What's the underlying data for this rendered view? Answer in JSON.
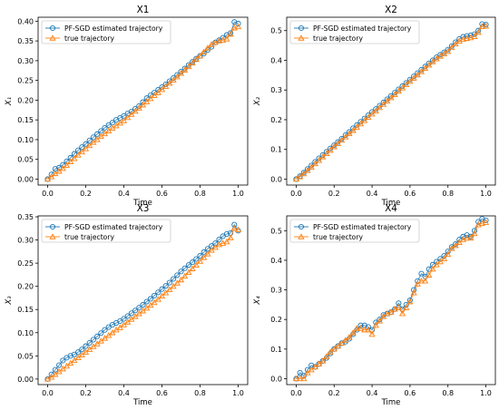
{
  "chart_data": [
    {
      "type": "line",
      "title": "X1",
      "xlabel": "Time",
      "ylabel": "X₁",
      "xlim": [
        -0.05,
        1.05
      ],
      "ylim": [
        -0.015,
        0.41
      ],
      "xticks": [
        "0.0",
        "0.2",
        "0.4",
        "0.6",
        "0.8",
        "1.0"
      ],
      "yticks": [
        "0.00",
        "0.05",
        "0.10",
        "0.15",
        "0.20",
        "0.25",
        "0.30",
        "0.35",
        "0.40"
      ],
      "legend": {
        "position": "top-left",
        "entries": [
          "PF-SGD estimated trajectory",
          "true trajectory"
        ]
      },
      "x": [
        0.0,
        0.02,
        0.04,
        0.06,
        0.08,
        0.1,
        0.12,
        0.14,
        0.16,
        0.18,
        0.2,
        0.22,
        0.24,
        0.26,
        0.28,
        0.3,
        0.32,
        0.34,
        0.36,
        0.38,
        0.4,
        0.42,
        0.44,
        0.46,
        0.48,
        0.5,
        0.52,
        0.54,
        0.56,
        0.58,
        0.6,
        0.62,
        0.64,
        0.66,
        0.68,
        0.7,
        0.72,
        0.74,
        0.76,
        0.78,
        0.8,
        0.82,
        0.84,
        0.86,
        0.88,
        0.9,
        0.92,
        0.94,
        0.96,
        0.98,
        1.0
      ],
      "series": [
        {
          "name": "PF-SGD estimated trajectory",
          "marker": "circle",
          "color": "#1f77b4",
          "values": [
            0.0,
            0.012,
            0.026,
            0.029,
            0.036,
            0.045,
            0.054,
            0.064,
            0.073,
            0.081,
            0.089,
            0.098,
            0.106,
            0.114,
            0.122,
            0.13,
            0.137,
            0.143,
            0.15,
            0.155,
            0.16,
            0.166,
            0.171,
            0.178,
            0.185,
            0.195,
            0.205,
            0.212,
            0.219,
            0.226,
            0.233,
            0.24,
            0.248,
            0.256,
            0.264,
            0.272,
            0.28,
            0.289,
            0.297,
            0.305,
            0.312,
            0.318,
            0.327,
            0.335,
            0.346,
            0.352,
            0.358,
            0.365,
            0.37,
            0.398,
            0.394
          ]
        },
        {
          "name": "true trajectory",
          "marker": "triangle",
          "color": "#ff7f0e",
          "values": [
            0.0,
            0.006,
            0.014,
            0.02,
            0.027,
            0.035,
            0.044,
            0.052,
            0.061,
            0.069,
            0.077,
            0.085,
            0.093,
            0.1,
            0.108,
            0.115,
            0.122,
            0.129,
            0.135,
            0.142,
            0.148,
            0.156,
            0.164,
            0.172,
            0.18,
            0.188,
            0.196,
            0.204,
            0.212,
            0.219,
            0.227,
            0.235,
            0.243,
            0.251,
            0.259,
            0.268,
            0.276,
            0.285,
            0.294,
            0.303,
            0.312,
            0.322,
            0.332,
            0.341,
            0.346,
            0.35,
            0.352,
            0.355,
            0.367,
            0.383,
            0.386
          ]
        }
      ]
    },
    {
      "type": "line",
      "title": "X2",
      "xlabel": "Time",
      "ylabel": "X₂",
      "xlim": [
        -0.05,
        1.05
      ],
      "ylim": [
        -0.02,
        0.545
      ],
      "xticks": [
        "0.0",
        "0.2",
        "0.4",
        "0.6",
        "0.8",
        "1.0"
      ],
      "yticks": [
        "0.0",
        "0.1",
        "0.2",
        "0.3",
        "0.4",
        "0.5"
      ],
      "legend": {
        "position": "top-left",
        "entries": [
          "PF-SGD estimated trajectory",
          "true trajectory"
        ]
      },
      "x": [
        0.0,
        0.02,
        0.04,
        0.06,
        0.08,
        0.1,
        0.12,
        0.14,
        0.16,
        0.18,
        0.2,
        0.22,
        0.24,
        0.26,
        0.28,
        0.3,
        0.32,
        0.34,
        0.36,
        0.38,
        0.4,
        0.42,
        0.44,
        0.46,
        0.48,
        0.5,
        0.52,
        0.54,
        0.56,
        0.58,
        0.6,
        0.62,
        0.64,
        0.66,
        0.68,
        0.7,
        0.72,
        0.74,
        0.76,
        0.78,
        0.8,
        0.82,
        0.84,
        0.86,
        0.88,
        0.9,
        0.92,
        0.94,
        0.96,
        0.98,
        1.0
      ],
      "series": [
        {
          "name": "PF-SGD estimated trajectory",
          "marker": "circle",
          "color": "#1f77b4",
          "values": [
            0.0,
            0.01,
            0.022,
            0.034,
            0.046,
            0.058,
            0.07,
            0.081,
            0.092,
            0.103,
            0.114,
            0.125,
            0.136,
            0.148,
            0.159,
            0.171,
            0.182,
            0.193,
            0.204,
            0.215,
            0.226,
            0.236,
            0.247,
            0.258,
            0.269,
            0.28,
            0.291,
            0.302,
            0.313,
            0.324,
            0.335,
            0.346,
            0.357,
            0.368,
            0.379,
            0.39,
            0.4,
            0.41,
            0.419,
            0.427,
            0.436,
            0.448,
            0.461,
            0.472,
            0.479,
            0.482,
            0.484,
            0.488,
            0.5,
            0.522,
            0.52
          ]
        },
        {
          "name": "true trajectory",
          "marker": "triangle",
          "color": "#ff7f0e",
          "values": [
            0.0,
            0.008,
            0.018,
            0.029,
            0.04,
            0.052,
            0.063,
            0.075,
            0.086,
            0.097,
            0.109,
            0.12,
            0.131,
            0.142,
            0.153,
            0.164,
            0.175,
            0.186,
            0.197,
            0.208,
            0.219,
            0.23,
            0.241,
            0.252,
            0.263,
            0.274,
            0.285,
            0.296,
            0.307,
            0.318,
            0.329,
            0.34,
            0.351,
            0.362,
            0.373,
            0.384,
            0.395,
            0.405,
            0.414,
            0.422,
            0.43,
            0.443,
            0.455,
            0.465,
            0.471,
            0.474,
            0.476,
            0.48,
            0.494,
            0.514,
            0.515
          ]
        }
      ]
    },
    {
      "type": "line",
      "title": "X3",
      "xlabel": "Time",
      "ylabel": "X₃",
      "xlim": [
        -0.05,
        1.05
      ],
      "ylim": [
        -0.012,
        0.352
      ],
      "xticks": [
        "0.0",
        "0.2",
        "0.4",
        "0.6",
        "0.8",
        "1.0"
      ],
      "yticks": [
        "0.00",
        "0.05",
        "0.10",
        "0.15",
        "0.20",
        "0.25",
        "0.30",
        "0.35"
      ],
      "legend": {
        "position": "top-left",
        "entries": [
          "PF-SGD estimated trajectory",
          "true trajectory"
        ]
      },
      "x": [
        0.0,
        0.02,
        0.04,
        0.06,
        0.08,
        0.1,
        0.12,
        0.14,
        0.16,
        0.18,
        0.2,
        0.22,
        0.24,
        0.26,
        0.28,
        0.3,
        0.32,
        0.34,
        0.36,
        0.38,
        0.4,
        0.42,
        0.44,
        0.46,
        0.48,
        0.5,
        0.52,
        0.54,
        0.56,
        0.58,
        0.6,
        0.62,
        0.64,
        0.66,
        0.68,
        0.7,
        0.72,
        0.74,
        0.76,
        0.78,
        0.8,
        0.82,
        0.84,
        0.86,
        0.88,
        0.9,
        0.92,
        0.94,
        0.96,
        0.98,
        1.0
      ],
      "series": [
        {
          "name": "PF-SGD estimated trajectory",
          "marker": "circle",
          "color": "#1f77b4",
          "values": [
            0.0,
            0.01,
            0.02,
            0.03,
            0.04,
            0.046,
            0.05,
            0.053,
            0.058,
            0.064,
            0.071,
            0.078,
            0.085,
            0.092,
            0.099,
            0.106,
            0.112,
            0.117,
            0.121,
            0.125,
            0.13,
            0.136,
            0.142,
            0.148,
            0.154,
            0.16,
            0.167,
            0.173,
            0.18,
            0.187,
            0.194,
            0.201,
            0.208,
            0.216,
            0.224,
            0.232,
            0.239,
            0.246,
            0.252,
            0.259,
            0.266,
            0.274,
            0.281,
            0.287,
            0.293,
            0.301,
            0.308,
            0.313,
            0.315,
            0.333,
            0.32
          ]
        },
        {
          "name": "true trajectory",
          "marker": "triangle",
          "color": "#ff7f0e",
          "values": [
            0.0,
            0.004,
            0.01,
            0.016,
            0.022,
            0.028,
            0.034,
            0.04,
            0.046,
            0.052,
            0.058,
            0.064,
            0.07,
            0.076,
            0.082,
            0.088,
            0.094,
            0.1,
            0.106,
            0.111,
            0.117,
            0.123,
            0.129,
            0.135,
            0.141,
            0.147,
            0.153,
            0.159,
            0.165,
            0.172,
            0.179,
            0.186,
            0.193,
            0.2,
            0.207,
            0.214,
            0.222,
            0.23,
            0.238,
            0.246,
            0.254,
            0.262,
            0.27,
            0.278,
            0.284,
            0.29,
            0.293,
            0.296,
            0.305,
            0.325,
            0.322
          ]
        }
      ]
    },
    {
      "type": "line",
      "title": "X4",
      "xlabel": "Time",
      "ylabel": "X₄",
      "xlim": [
        -0.05,
        1.05
      ],
      "ylim": [
        -0.02,
        0.55
      ],
      "xticks": [
        "0.0",
        "0.2",
        "0.4",
        "0.6",
        "0.8",
        "1.0"
      ],
      "yticks": [
        "0.0",
        "0.1",
        "0.2",
        "0.3",
        "0.4",
        "0.5"
      ],
      "legend": {
        "position": "top-left",
        "entries": [
          "PF-SGD estimated trajectory",
          "true trajectory"
        ]
      },
      "x": [
        0.0,
        0.02,
        0.04,
        0.06,
        0.08,
        0.1,
        0.12,
        0.14,
        0.16,
        0.18,
        0.2,
        0.22,
        0.24,
        0.26,
        0.28,
        0.3,
        0.32,
        0.34,
        0.36,
        0.38,
        0.4,
        0.42,
        0.44,
        0.46,
        0.48,
        0.5,
        0.52,
        0.54,
        0.56,
        0.58,
        0.6,
        0.62,
        0.64,
        0.66,
        0.68,
        0.7,
        0.72,
        0.74,
        0.76,
        0.78,
        0.8,
        0.82,
        0.84,
        0.86,
        0.88,
        0.9,
        0.92,
        0.94,
        0.96,
        0.98,
        1.0
      ],
      "series": [
        {
          "name": "PF-SGD estimated trajectory",
          "marker": "circle",
          "color": "#1f77b4",
          "values": [
            0.0,
            0.02,
            0.01,
            0.03,
            0.045,
            0.04,
            0.05,
            0.06,
            0.07,
            0.085,
            0.1,
            0.11,
            0.12,
            0.125,
            0.135,
            0.15,
            0.165,
            0.18,
            0.18,
            0.175,
            0.165,
            0.19,
            0.2,
            0.215,
            0.22,
            0.225,
            0.235,
            0.255,
            0.235,
            0.25,
            0.265,
            0.3,
            0.33,
            0.355,
            0.345,
            0.37,
            0.385,
            0.395,
            0.405,
            0.415,
            0.43,
            0.445,
            0.455,
            0.47,
            0.48,
            0.485,
            0.48,
            0.5,
            0.53,
            0.54,
            0.535
          ]
        },
        {
          "name": "true trajectory",
          "marker": "triangle",
          "color": "#ff7f0e",
          "values": [
            0.0,
            0.0,
            0.0,
            0.02,
            0.03,
            0.04,
            0.05,
            0.06,
            0.075,
            0.09,
            0.1,
            0.11,
            0.12,
            0.13,
            0.14,
            0.155,
            0.17,
            0.17,
            0.165,
            0.165,
            0.15,
            0.18,
            0.195,
            0.21,
            0.22,
            0.225,
            0.235,
            0.24,
            0.22,
            0.24,
            0.26,
            0.29,
            0.32,
            0.33,
            0.33,
            0.35,
            0.37,
            0.385,
            0.395,
            0.405,
            0.42,
            0.44,
            0.45,
            0.46,
            0.47,
            0.475,
            0.475,
            0.49,
            0.52,
            0.525,
            0.528
          ]
        }
      ]
    }
  ]
}
